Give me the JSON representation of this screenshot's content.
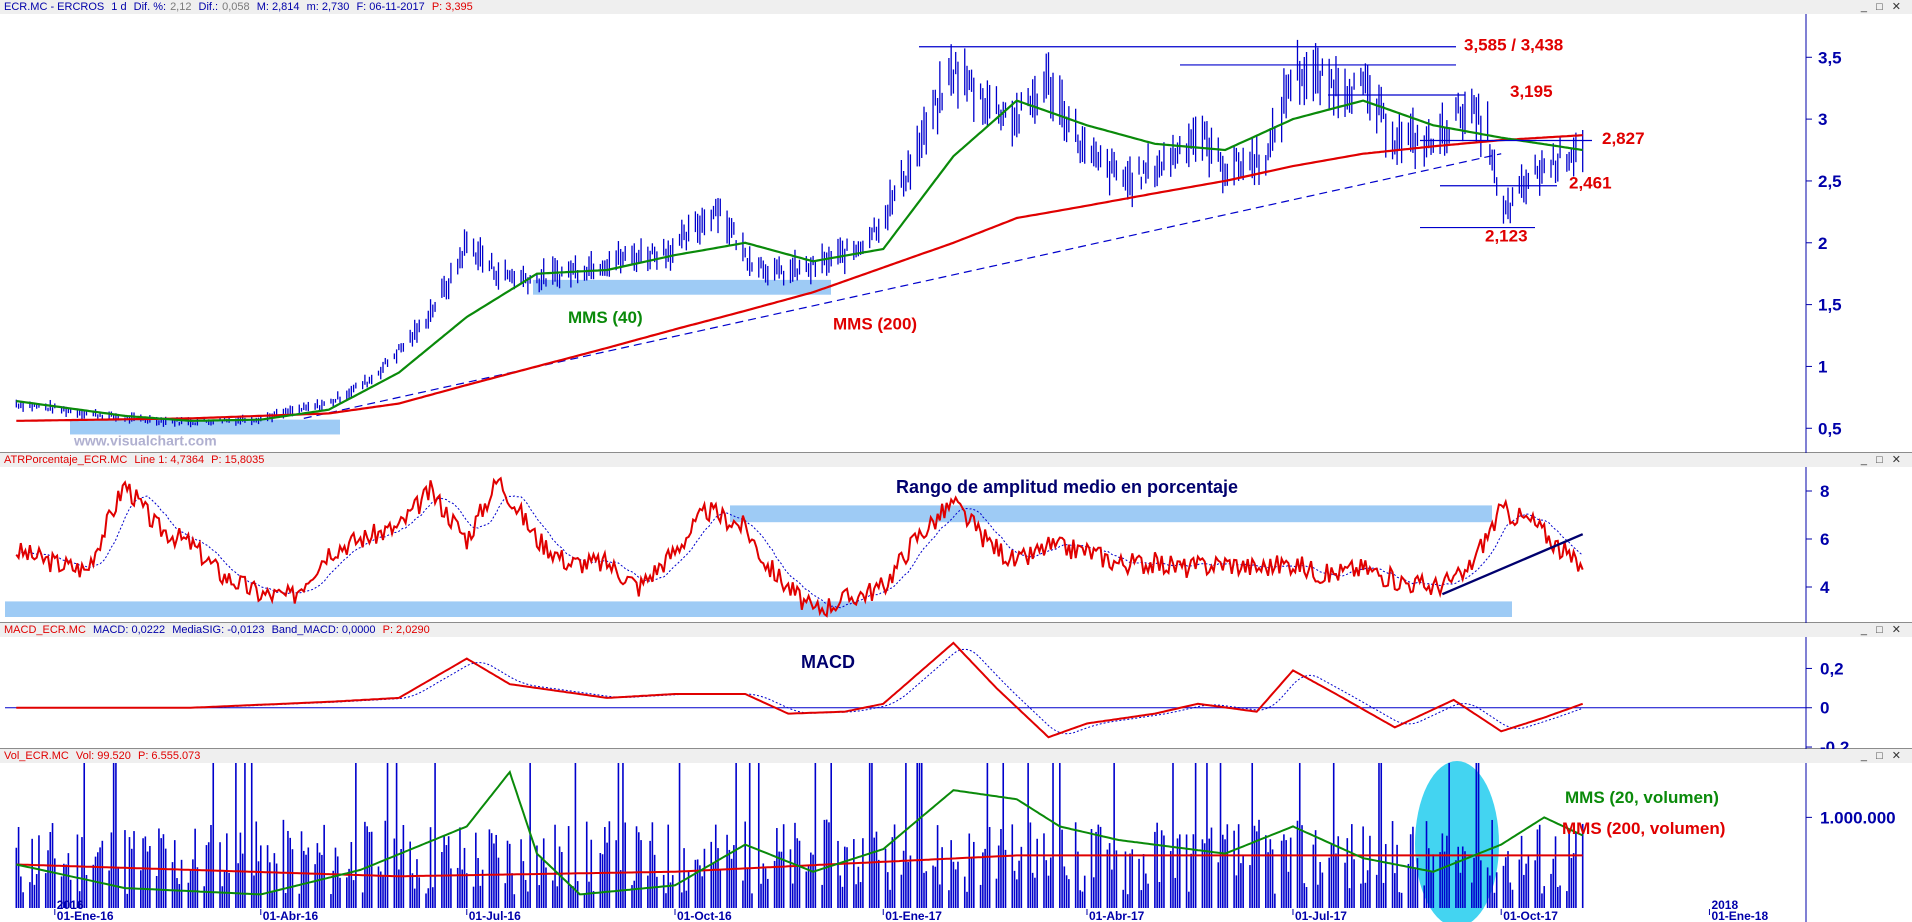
{
  "panels": {
    "price": {
      "header": {
        "symbol": "ECR.MC - ERCROS",
        "period": "1 d",
        "dif_pct_label": "Dif. %:",
        "dif_pct": "2,12",
        "dif_label": "Dif.:",
        "dif": "0,058",
        "max": "M: 2,814",
        "min": "m: 2,730",
        "date": "F: 06-11-2017",
        "price": "P: 3,395"
      },
      "watermark": "www.visualchart.com"
    },
    "atr": {
      "header": {
        "name": "ATRPorcentaje_ECR.MC",
        "line": "Line 1: 4,7364",
        "price": "P: 15,8035"
      }
    },
    "macd": {
      "header": {
        "name": "MACD_ECR.MC",
        "macd": "MACD: 0,0222",
        "sig": "MediaSIG: -0,0123",
        "band": "Band_MACD: 0,0000",
        "price": "P: 2,0290"
      }
    },
    "vol": {
      "header": {
        "name": "Vol_ECR.MC",
        "vol": "Vol: 99.520",
        "price": "P: 6.555.073"
      }
    }
  },
  "window_buttons": "_ □ ✕",
  "colors": {
    "candles": "#0000cc",
    "mms40": "#0a8a0a",
    "mms200": "#e00000",
    "highlight": "#9ecbf5",
    "axis": "#0000aa",
    "annotation": "#e00000",
    "line_blue": "#0000cc"
  },
  "chart_data": [
    {
      "type": "line",
      "title": "",
      "series": [
        {
          "name": "ECR.MC",
          "x": [
            "2015-12-15",
            "2016-01-01",
            "2016-02-01",
            "2016-03-01",
            "2016-04-01",
            "2016-05-01",
            "2016-05-20",
            "2016-06-10",
            "2016-06-24",
            "2016-07-01",
            "2016-07-15",
            "2016-08-01",
            "2016-09-01",
            "2016-10-01",
            "2016-10-20",
            "2016-11-01",
            "2016-11-15",
            "2016-12-01",
            "2016-12-20",
            "2017-01-01",
            "2017-01-15",
            "2017-02-01",
            "2017-02-15",
            "2017-03-01",
            "2017-03-15",
            "2017-04-01",
            "2017-04-20",
            "2017-05-05",
            "2017-05-20",
            "2017-06-01",
            "2017-06-20",
            "2017-07-01",
            "2017-07-15",
            "2017-08-01",
            "2017-08-15",
            "2017-09-01",
            "2017-09-15",
            "2017-09-25",
            "2017-10-01",
            "2017-10-15",
            "2017-11-06"
          ],
          "values": [
            0.7,
            0.66,
            0.58,
            0.55,
            0.58,
            0.7,
            0.9,
            1.3,
            1.7,
            2.0,
            1.75,
            1.7,
            1.85,
            1.95,
            2.3,
            1.9,
            1.75,
            1.8,
            1.95,
            2.2,
            2.7,
            3.4,
            3.15,
            3.0,
            3.3,
            2.7,
            2.5,
            2.65,
            2.9,
            2.6,
            2.7,
            3.4,
            3.3,
            3.25,
            2.85,
            2.8,
            3.1,
            2.9,
            2.2,
            2.55,
            2.8
          ]
        },
        {
          "name": "MMS (40)",
          "x": [
            "2015-12-15",
            "2016-02-01",
            "2016-03-01",
            "2016-04-01",
            "2016-05-01",
            "2016-06-01",
            "2016-07-01",
            "2016-08-01",
            "2016-09-01",
            "2016-10-01",
            "2016-11-01",
            "2016-12-01",
            "2017-01-01",
            "2017-02-01",
            "2017-03-01",
            "2017-04-01",
            "2017-05-01",
            "2017-06-01",
            "2017-07-01",
            "2017-08-01",
            "2017-09-01",
            "2017-10-01",
            "2017-11-06"
          ],
          "values": [
            0.72,
            0.6,
            0.56,
            0.57,
            0.65,
            0.95,
            1.4,
            1.75,
            1.78,
            1.9,
            2.0,
            1.85,
            1.95,
            2.7,
            3.15,
            2.95,
            2.8,
            2.75,
            3.0,
            3.15,
            2.95,
            2.85,
            2.75
          ]
        },
        {
          "name": "MMS (200)",
          "x": [
            "2015-12-15",
            "2016-03-01",
            "2016-05-01",
            "2016-06-01",
            "2016-07-01",
            "2016-08-01",
            "2016-09-01",
            "2016-10-01",
            "2016-11-01",
            "2016-12-01",
            "2017-01-01",
            "2017-02-01",
            "2017-03-01",
            "2017-04-01",
            "2017-05-01",
            "2017-06-01",
            "2017-07-01",
            "2017-08-01",
            "2017-09-01",
            "2017-10-01",
            "2017-11-06"
          ],
          "values": [
            0.56,
            0.58,
            0.62,
            0.7,
            0.85,
            1.0,
            1.15,
            1.3,
            1.45,
            1.6,
            1.8,
            2.0,
            2.2,
            2.3,
            2.4,
            2.5,
            2.62,
            2.72,
            2.78,
            2.83,
            2.87
          ]
        }
      ],
      "annotations": [
        "3,585 / 3,438",
        "3,195",
        "2,827",
        "2,461",
        "2,123",
        "MMS (40)",
        "MMS (200)"
      ],
      "y_ticks": [
        "0,5",
        "1",
        "1,5",
        "2",
        "2,5",
        "3",
        "3,5"
      ],
      "ylim": [
        0.3,
        3.85
      ],
      "x_ticks": [
        "01-Ene-16",
        "01-Abr-16",
        "01-Jul-16",
        "01-Oct-16",
        "01-Ene-17",
        "01-Abr-17",
        "01-Jul-17",
        "01-Oct-17",
        "01-Ene-18"
      ],
      "xlim": [
        "2015-12-10",
        "2018-02-10"
      ],
      "levels": [
        3.585,
        3.438,
        3.195,
        2.827,
        2.461,
        2.123
      ]
    },
    {
      "type": "line",
      "title": "Rango de amplitud medio en porcentaje",
      "series": [
        {
          "name": "ATR %",
          "x": [
            "2015-12-15",
            "2016-01-01",
            "2016-01-15",
            "2016-02-01",
            "2016-02-15",
            "2016-03-01",
            "2016-03-15",
            "2016-04-01",
            "2016-04-15",
            "2016-05-01",
            "2016-05-15",
            "2016-06-01",
            "2016-06-15",
            "2016-07-01",
            "2016-07-15",
            "2016-08-01",
            "2016-08-15",
            "2016-09-01",
            "2016-09-15",
            "2016-10-01",
            "2016-10-15",
            "2016-11-01",
            "2016-11-10",
            "2016-11-20",
            "2016-12-01",
            "2016-12-15",
            "2017-01-01",
            "2017-01-15",
            "2017-02-01",
            "2017-02-15",
            "2017-03-01",
            "2017-03-15",
            "2017-04-01",
            "2017-04-15",
            "2017-05-01",
            "2017-05-15",
            "2017-06-01",
            "2017-06-15",
            "2017-07-01",
            "2017-07-15",
            "2017-08-01",
            "2017-08-15",
            "2017-09-01",
            "2017-09-15",
            "2017-10-01",
            "2017-10-15",
            "2017-11-06"
          ],
          "values": [
            5.5,
            5.0,
            4.7,
            8.3,
            6.5,
            5.8,
            4.5,
            3.7,
            3.6,
            5.5,
            6.0,
            6.5,
            8.0,
            6.0,
            8.5,
            6.0,
            5.0,
            5.0,
            4.0,
            5.5,
            7.2,
            6.5,
            5.0,
            4.0,
            3.0,
            3.5,
            4.0,
            6.0,
            7.5,
            6.0,
            5.0,
            5.7,
            5.5,
            5.0,
            5.0,
            4.8,
            5.0,
            4.8,
            5.0,
            4.5,
            4.8,
            4.3,
            4.0,
            4.5,
            7.2,
            6.7,
            4.7
          ]
        }
      ],
      "y_ticks": [
        "4",
        "6",
        "8"
      ],
      "ylim": [
        2.5,
        9.0
      ]
    },
    {
      "type": "line",
      "title": "MACD",
      "series": [
        {
          "name": "MACD",
          "x": [
            "2015-12-15",
            "2016-03-01",
            "2016-05-01",
            "2016-06-01",
            "2016-07-01",
            "2016-07-20",
            "2016-09-01",
            "2016-10-01",
            "2016-11-01",
            "2016-11-20",
            "2016-12-15",
            "2017-01-01",
            "2017-02-01",
            "2017-02-20",
            "2017-03-15",
            "2017-04-01",
            "2017-05-01",
            "2017-05-20",
            "2017-06-15",
            "2017-07-01",
            "2017-07-20",
            "2017-08-15",
            "2017-09-10",
            "2017-10-01",
            "2017-10-20",
            "2017-11-06"
          ],
          "values": [
            0.0,
            0.0,
            0.03,
            0.05,
            0.25,
            0.12,
            0.05,
            0.07,
            0.07,
            -0.03,
            -0.02,
            0.02,
            0.33,
            0.1,
            -0.15,
            -0.08,
            -0.03,
            0.02,
            -0.02,
            0.19,
            0.07,
            -0.1,
            0.04,
            -0.12,
            -0.05,
            0.02
          ]
        }
      ],
      "y_ticks": [
        "0",
        "0,2",
        "-0,2"
      ],
      "ylim": [
        -0.21,
        0.36
      ]
    },
    {
      "type": "bar",
      "title": "",
      "series": [
        {
          "name": "MMS (20, volumen)",
          "values": []
        },
        {
          "name": "MMS (200, volumen)",
          "values": []
        }
      ],
      "y_ticks": [
        "1.000.000"
      ],
      "ylim": [
        0,
        1600000
      ]
    }
  ],
  "labels": {
    "mms40": "MMS (40)",
    "mms200": "MMS (200)",
    "lvl_3585": "3,585 / 3,438",
    "lvl_3195": "3,195",
    "lvl_2827": "2,827",
    "lvl_2461": "2,461",
    "lvl_2123": "2,123",
    "atr_title": "Rango de amplitud medio en porcentaje",
    "macd_title": "MACD",
    "vol_mms20": "MMS (20, volumen)",
    "vol_mms200": "MMS (200, volumen)",
    "year_2018": "2018",
    "year_2016": "2016"
  }
}
